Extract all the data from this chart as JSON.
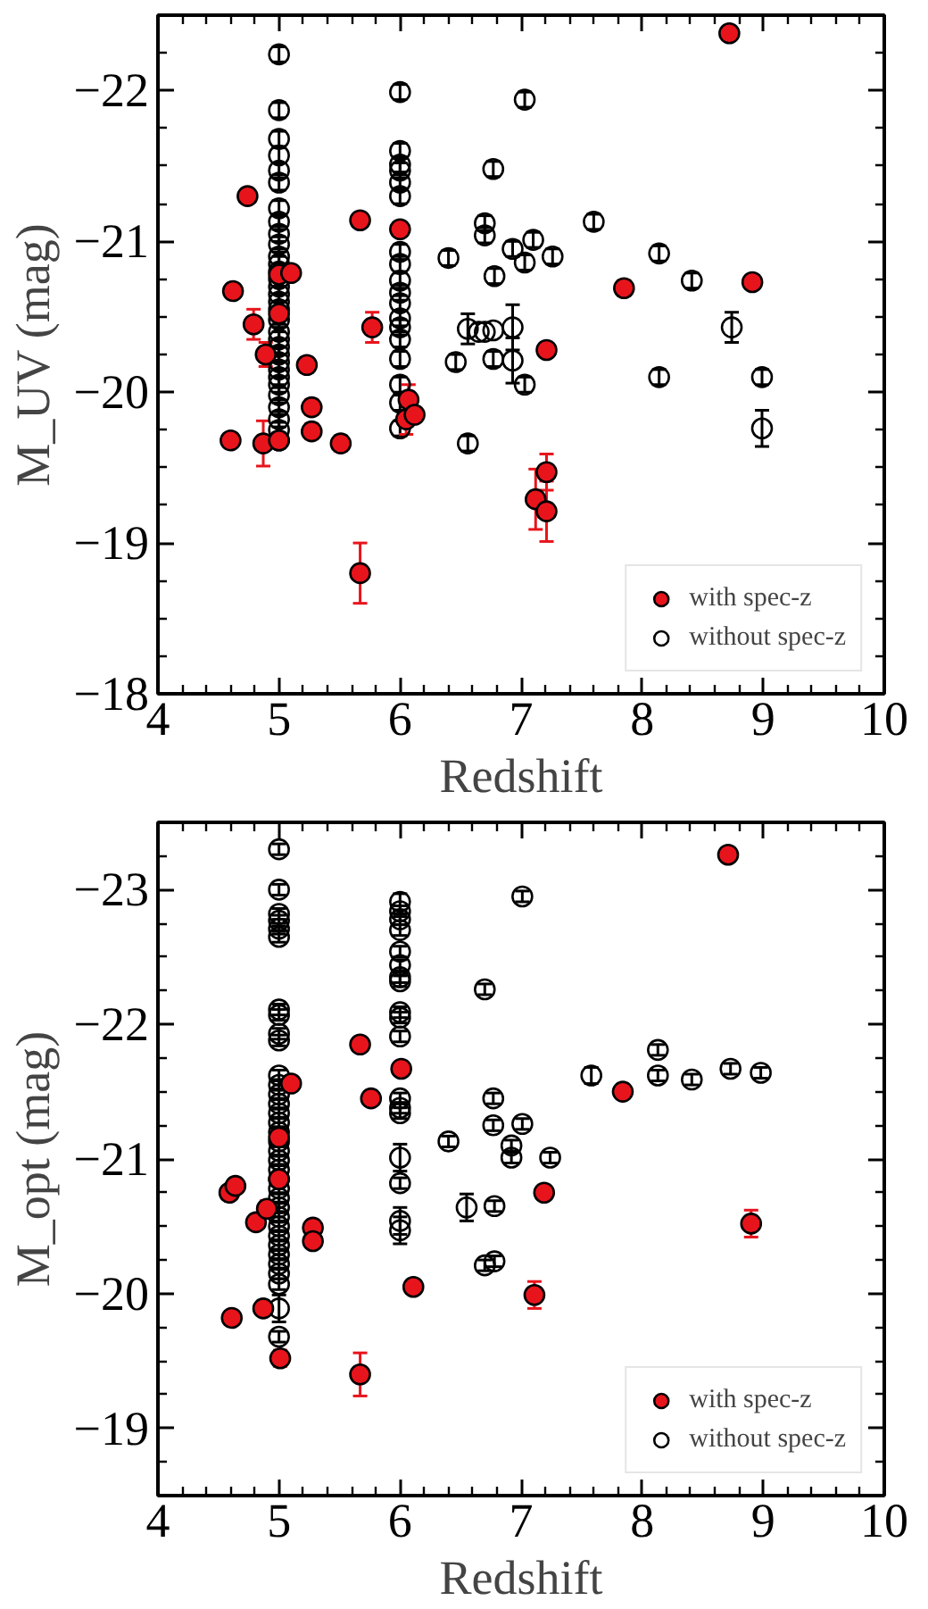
{
  "chart_data": [
    {
      "type": "scatter",
      "xlabel": "Redshift",
      "ylabel": "M_UV (mag)",
      "xlim": [
        4,
        10
      ],
      "ylim": [
        -18,
        -22.5
      ],
      "legend": "bottom right",
      "marker": "circle",
      "grid": false,
      "xticks": [
        4,
        {
          "value": 4.2,
          "label": null
        },
        {
          "value": 4.4,
          "label": null
        },
        {
          "value": 4.6,
          "label": null
        },
        {
          "value": 4.8,
          "label": null
        },
        5,
        {
          "value": 5.2,
          "label": null
        },
        {
          "value": 5.4,
          "label": null
        },
        {
          "value": 5.6,
          "label": null
        },
        {
          "value": 5.8,
          "label": null
        },
        6,
        {
          "value": 6.2,
          "label": null
        },
        {
          "value": 6.4,
          "label": null
        },
        {
          "value": 6.6,
          "label": null
        },
        {
          "value": 6.8,
          "label": null
        },
        7,
        {
          "value": 7.2,
          "label": null
        },
        {
          "value": 7.4,
          "label": null
        },
        {
          "value": 7.6,
          "label": null
        },
        {
          "value": 7.8,
          "label": null
        },
        8,
        {
          "value": 8.2,
          "label": null
        },
        {
          "value": 8.4,
          "label": null
        },
        {
          "value": 8.6,
          "label": null
        },
        {
          "value": 8.8,
          "label": null
        },
        9,
        {
          "value": 9.2,
          "label": null
        },
        {
          "value": 9.4,
          "label": null
        },
        {
          "value": 9.6,
          "label": null
        },
        {
          "value": 9.8,
          "label": null
        },
        10
      ],
      "yticks": [
        {
          "value": -22.25,
          "label": null
        },
        {
          "value": -22,
          "label": "−22"
        },
        {
          "value": -21.75,
          "label": null
        },
        {
          "value": -21.5,
          "label": null
        },
        {
          "value": -21.25,
          "label": null
        },
        {
          "value": -21,
          "label": "−21"
        },
        {
          "value": -20.75,
          "label": null
        },
        {
          "value": -20.5,
          "label": null
        },
        {
          "value": -20.25,
          "label": null
        },
        {
          "value": -20,
          "label": "−20"
        },
        {
          "value": -19.75,
          "label": null
        },
        {
          "value": -19.5,
          "label": null
        },
        {
          "value": -19.25,
          "label": null
        },
        {
          "value": -19,
          "label": "−19"
        },
        {
          "value": -18.75,
          "label": null
        },
        {
          "value": -18.5,
          "label": null
        },
        {
          "value": -18.25,
          "label": null
        },
        {
          "value": -18,
          "label": "−18"
        }
      ],
      "series": [
        {
          "name": "with spec-z",
          "color": "#e8141c",
          "x": [
            4.6,
            4.74,
            4.62,
            4.79,
            4.89,
            4.87,
            5.0,
            5.0,
            5.0,
            5.1,
            5.23,
            5.27,
            5.27,
            5.51,
            5.67,
            5.77,
            5.67,
            6.0,
            6.07,
            6.05,
            6.12,
            7.21,
            8.72,
            7.85,
            8.91,
            7.21,
            7.12,
            7.21
          ],
          "values": [
            -19.68,
            -21.3,
            -20.67,
            -20.45,
            -20.25,
            -19.66,
            -19.68,
            -20.78,
            -20.52,
            -20.79,
            -20.18,
            -19.9,
            -19.74,
            -19.66,
            -21.14,
            -20.43,
            -18.8,
            -21.08,
            -19.95,
            -19.82,
            -19.85,
            -20.28,
            -22.38,
            -20.69,
            -20.73,
            -19.47,
            -19.29,
            -19.21
          ],
          "errors": [
            null,
            null,
            null,
            0.1,
            0.08,
            0.15,
            null,
            null,
            null,
            null,
            0.05,
            0.05,
            0.05,
            0.05,
            null,
            0.1,
            0.2,
            null,
            0.1,
            0.1,
            null,
            null,
            null,
            0.05,
            null,
            0.12,
            0.2,
            0.2
          ]
        },
        {
          "name": "without spec-z",
          "color": "#000000",
          "x": [
            5,
            5,
            5,
            5,
            5,
            5,
            5,
            5,
            5,
            5,
            5,
            5,
            5,
            5,
            5,
            5,
            5,
            5,
            5,
            5,
            5,
            5,
            5,
            5,
            5,
            5,
            5,
            5,
            5,
            5,
            5,
            5,
            6,
            6,
            6,
            6,
            6,
            6,
            6,
            6,
            6,
            6,
            6,
            6,
            6,
            6,
            6,
            6,
            6,
            6,
            7.03,
            7.6,
            6.93,
            7.1,
            7.03,
            7.26,
            8.14,
            8.41,
            6.93,
            6.93,
            7.03,
            8.74,
            8.14,
            8.99,
            8.99,
            6.4,
            6.7,
            6.7,
            6.77,
            6.78,
            6.56,
            6.46,
            6.65,
            6.7,
            6.77,
            6.77,
            6.56
          ],
          "values": [
            -22.24,
            -21.87,
            -21.68,
            -21.57,
            -21.47,
            -21.39,
            -21.22,
            -21.13,
            -21.05,
            -20.98,
            -20.9,
            -20.85,
            -20.8,
            -20.75,
            -20.7,
            -20.65,
            -20.6,
            -20.55,
            -20.48,
            -20.4,
            -20.35,
            -20.3,
            -20.25,
            -20.2,
            -20.15,
            -20.1,
            -20.05,
            -19.98,
            -19.9,
            -19.82,
            -19.75,
            -19.68,
            -21.99,
            -21.6,
            -21.51,
            -21.47,
            -21.39,
            -21.3,
            -20.93,
            -20.85,
            -20.74,
            -20.66,
            -20.59,
            -20.49,
            -20.43,
            -20.35,
            -20.22,
            -20.05,
            -19.93,
            -19.76,
            -21.94,
            -21.13,
            -20.95,
            -21.01,
            -20.86,
            -20.9,
            -20.92,
            -20.74,
            -20.43,
            -20.21,
            -20.05,
            -20.43,
            -20.1,
            -20.1,
            -19.76,
            -20.89,
            -21.12,
            -21.04,
            -21.48,
            -20.77,
            -20.42,
            -20.2,
            -20.4,
            -20.4,
            -20.41,
            -20.22,
            -19.66
          ],
          "errors": [
            0.05,
            0.05,
            0.05,
            0.05,
            0.05,
            0.05,
            0.05,
            0.05,
            0.05,
            0.05,
            0.05,
            0.05,
            0.05,
            0.05,
            0.05,
            0.05,
            0.05,
            0.05,
            0.05,
            0.05,
            0.05,
            0.05,
            0.05,
            0.05,
            0.05,
            0.05,
            0.05,
            0.05,
            0.05,
            0.05,
            0.05,
            0.05,
            0.05,
            0.05,
            0.05,
            0.05,
            0.05,
            0.05,
            0.05,
            0.05,
            0.05,
            0.05,
            0.05,
            0.05,
            0.05,
            0.05,
            0.05,
            0.05,
            0.05,
            0.05,
            0.05,
            0.05,
            0.05,
            0.05,
            0.05,
            0.05,
            0.05,
            0.05,
            0.15,
            0.15,
            0.05,
            0.1,
            0.05,
            0.05,
            0.12,
            0.05,
            0.05,
            0.05,
            0.05,
            0.05,
            0.1,
            0.05,
            null,
            null,
            null,
            0.05,
            0.05
          ]
        }
      ]
    },
    {
      "type": "scatter",
      "xlabel": "Redshift",
      "ylabel": "M_opt (mag)",
      "xlim": [
        4,
        10
      ],
      "ylim": [
        -18.5,
        -23.5
      ],
      "legend": "bottom right",
      "marker": "circle",
      "grid": false,
      "xticks": [
        4,
        {
          "value": 4.2,
          "label": null
        },
        {
          "value": 4.4,
          "label": null
        },
        {
          "value": 4.6,
          "label": null
        },
        {
          "value": 4.8,
          "label": null
        },
        5,
        {
          "value": 5.2,
          "label": null
        },
        {
          "value": 5.4,
          "label": null
        },
        {
          "value": 5.6,
          "label": null
        },
        {
          "value": 5.8,
          "label": null
        },
        6,
        {
          "value": 6.2,
          "label": null
        },
        {
          "value": 6.4,
          "label": null
        },
        {
          "value": 6.6,
          "label": null
        },
        {
          "value": 6.8,
          "label": null
        },
        7,
        {
          "value": 7.2,
          "label": null
        },
        {
          "value": 7.4,
          "label": null
        },
        {
          "value": 7.6,
          "label": null
        },
        {
          "value": 7.8,
          "label": null
        },
        8,
        {
          "value": 8.2,
          "label": null
        },
        {
          "value": 8.4,
          "label": null
        },
        {
          "value": 8.6,
          "label": null
        },
        {
          "value": 8.8,
          "label": null
        },
        9,
        {
          "value": 9.2,
          "label": null
        },
        {
          "value": 9.4,
          "label": null
        },
        {
          "value": 9.6,
          "label": null
        },
        {
          "value": 9.8,
          "label": null
        },
        10
      ],
      "yticks": [
        {
          "value": -23.25,
          "label": null
        },
        {
          "value": -23,
          "label": "−23"
        },
        {
          "value": -22.75,
          "label": null
        },
        {
          "value": -22.5,
          "label": null
        },
        {
          "value": -22.25,
          "label": null
        },
        {
          "value": -22,
          "label": "−22"
        },
        {
          "value": -21.75,
          "label": null
        },
        {
          "value": -21.5,
          "label": null
        },
        {
          "value": -21.25,
          "label": null
        },
        {
          "value": -21,
          "label": "−21"
        },
        {
          "value": -20.75,
          "label": null
        },
        {
          "value": -20.5,
          "label": null
        },
        {
          "value": -20.25,
          "label": null
        },
        {
          "value": -20,
          "label": "−20"
        },
        {
          "value": -19.75,
          "label": null
        },
        {
          "value": -19.5,
          "label": null
        },
        {
          "value": -19.25,
          "label": null
        },
        {
          "value": -19,
          "label": "−19"
        },
        {
          "value": -18.75,
          "label": null
        }
      ],
      "series": [
        {
          "name": "with spec-z",
          "color": "#e8141c",
          "x": [
            4.59,
            4.64,
            4.81,
            4.9,
            4.61,
            4.87,
            5.01,
            5.0,
            5.0,
            5.1,
            5.28,
            5.28,
            5.67,
            5.76,
            5.67,
            6.01,
            6.11,
            7.19,
            8.71,
            7.84,
            8.9,
            7.11
          ],
          "values": [
            -20.75,
            -20.8,
            -20.53,
            -20.63,
            -19.82,
            -19.89,
            -19.52,
            -21.16,
            -20.85,
            -21.56,
            -20.49,
            -20.39,
            -21.85,
            -21.45,
            -19.4,
            -21.67,
            -20.05,
            -20.75,
            -23.26,
            -21.5,
            -20.52,
            -19.99
          ],
          "errors": [
            null,
            null,
            null,
            0.06,
            null,
            null,
            0.06,
            null,
            null,
            null,
            null,
            null,
            null,
            null,
            0.16,
            null,
            null,
            null,
            null,
            null,
            0.1,
            0.1
          ]
        },
        {
          "name": "without spec-z",
          "color": "#000000",
          "x": [
            5,
            5,
            5,
            5,
            5,
            5,
            5,
            5,
            5,
            5,
            5,
            5,
            5,
            5,
            5,
            5,
            5,
            5,
            5,
            5,
            5,
            5,
            5,
            5,
            5,
            5,
            5,
            5,
            5,
            5,
            5,
            5,
            5,
            5,
            5,
            6,
            6,
            6,
            6,
            6,
            6,
            6,
            6,
            6,
            6,
            6,
            6,
            6,
            6,
            6,
            6,
            6,
            6,
            7.01,
            7.58,
            8.13,
            8.13,
            8.41,
            8.73,
            8.98,
            7.01,
            6.92,
            6.92,
            7.24,
            6.7,
            6.4,
            6.55,
            6.78,
            6.77,
            6.77,
            6.7,
            6.78
          ],
          "values": [
            -23.3,
            -23.0,
            -22.82,
            -22.77,
            -22.71,
            -22.65,
            -22.11,
            -22.07,
            -21.93,
            -21.88,
            -21.62,
            -21.55,
            -21.48,
            -21.41,
            -21.34,
            -21.27,
            -21.2,
            -21.13,
            -21.06,
            -20.99,
            -20.92,
            -20.85,
            -20.78,
            -20.71,
            -20.64,
            -20.57,
            -20.5,
            -20.43,
            -20.36,
            -20.29,
            -20.22,
            -20.15,
            -20.07,
            -19.89,
            -19.68,
            -22.91,
            -22.84,
            -22.78,
            -22.7,
            -22.54,
            -22.44,
            -22.35,
            -22.32,
            -22.09,
            -22.05,
            -21.91,
            -21.45,
            -21.38,
            -21.34,
            -21.01,
            -20.82,
            -20.54,
            -20.47,
            -22.95,
            -21.62,
            -21.81,
            -21.62,
            -21.59,
            -21.67,
            -21.64,
            -21.26,
            -21.1,
            -21.01,
            -21.01,
            -22.26,
            -21.13,
            -20.64,
            -20.65,
            -21.45,
            -21.25,
            -20.21,
            -20.24
          ],
          "errors": [
            0.04,
            0.04,
            0.04,
            0.04,
            0.04,
            0.04,
            0.04,
            0.04,
            0.04,
            0.04,
            0.04,
            0.04,
            0.04,
            0.04,
            0.04,
            0.04,
            0.04,
            0.04,
            0.04,
            0.04,
            0.04,
            0.04,
            0.04,
            0.04,
            0.04,
            0.04,
            0.04,
            0.04,
            0.04,
            0.04,
            0.04,
            0.04,
            0.04,
            0.1,
            0.04,
            0.06,
            0.04,
            0.04,
            0.04,
            0.04,
            0.04,
            0.04,
            0.04,
            0.04,
            0.04,
            0.04,
            0.04,
            0.04,
            0.04,
            0.1,
            0.04,
            0.1,
            0.1,
            0.04,
            0.06,
            0.04,
            0.04,
            0.04,
            0.04,
            0.04,
            0.04,
            0.04,
            0.04,
            0.04,
            0.04,
            0.04,
            0.1,
            0.04,
            0.04,
            0.04,
            0.04,
            0.04
          ]
        }
      ]
    }
  ]
}
